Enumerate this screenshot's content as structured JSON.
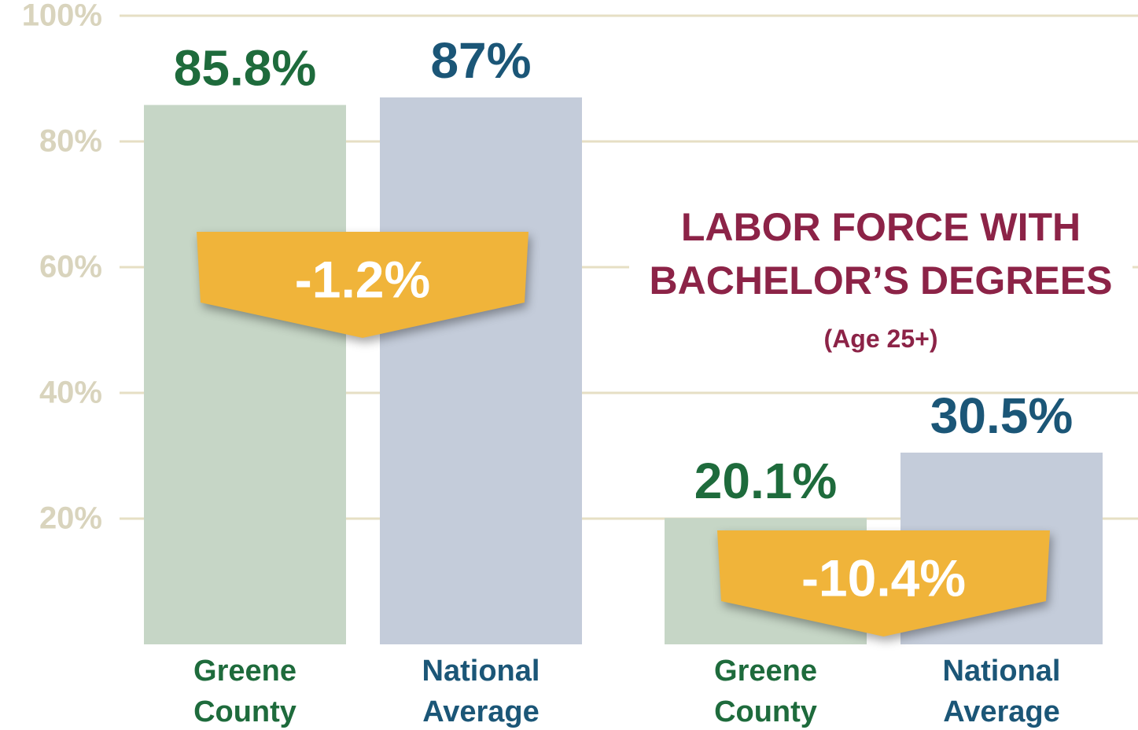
{
  "chart_data": {
    "type": "bar",
    "ylim": [
      0,
      100
    ],
    "yticks": [
      {
        "value": 20,
        "label": "20%"
      },
      {
        "value": 40,
        "label": "40%"
      },
      {
        "value": 60,
        "label": "60%"
      },
      {
        "value": 80,
        "label": "80%"
      },
      {
        "value": 100,
        "label": "100%"
      }
    ],
    "grid": true,
    "groups": [
      {
        "categories": [
          "Greene County",
          "National Average"
        ],
        "values": [
          85.8,
          87
        ],
        "value_labels": [
          "85.8%",
          "87%"
        ],
        "colors": [
          "#c6d6c6",
          "#c4ccda"
        ],
        "label_colors": [
          "#1e6b3c",
          "#1b5677"
        ],
        "annotation": "-1.2%"
      },
      {
        "title": "LABOR FORCE WITH BACHELOR’S DEGREES",
        "subtitle": "(Age 25+)",
        "categories": [
          "Greene County",
          "National Average"
        ],
        "values": [
          20.1,
          30.5
        ],
        "value_labels": [
          "20.1%",
          "30.5%"
        ],
        "colors": [
          "#c6d6c6",
          "#c4ccda"
        ],
        "label_colors": [
          "#1e6b3c",
          "#1b5677"
        ],
        "annotation": "-10.4%"
      }
    ]
  }
}
